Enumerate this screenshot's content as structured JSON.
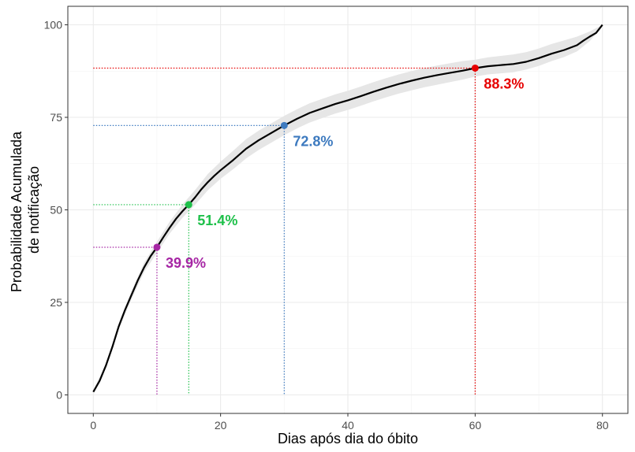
{
  "chart_data": {
    "type": "line",
    "xlabel": "Dias após dia do óbito",
    "ylabel_lines": [
      "Probabilidade Acumulada",
      "de notificação"
    ],
    "xlim": [
      -4,
      84
    ],
    "ylim": [
      -5,
      105
    ],
    "x_ticks": [
      0,
      20,
      40,
      60,
      80
    ],
    "y_ticks": [
      0,
      25,
      50,
      75,
      100
    ],
    "grid": true,
    "series": [
      {
        "color": "#000000",
        "points": [
          [
            0,
            0.8
          ],
          [
            1,
            3.8
          ],
          [
            2,
            8
          ],
          [
            3,
            13
          ],
          [
            4,
            18.5
          ],
          [
            5,
            23
          ],
          [
            6,
            27
          ],
          [
            7,
            31
          ],
          [
            8,
            34.5
          ],
          [
            9,
            37.5
          ],
          [
            10,
            39.9
          ],
          [
            11,
            42.6
          ],
          [
            12,
            45.2
          ],
          [
            13,
            47.6
          ],
          [
            14,
            49.6
          ],
          [
            15,
            51.4
          ],
          [
            16,
            53.4
          ],
          [
            17,
            55.6
          ],
          [
            18,
            57.5
          ],
          [
            19,
            59.2
          ],
          [
            20,
            60.7
          ],
          [
            22,
            63.5
          ],
          [
            24,
            66.5
          ],
          [
            26,
            68.8
          ],
          [
            28,
            70.8
          ],
          [
            30,
            72.8
          ],
          [
            32,
            74.6
          ],
          [
            34,
            76.2
          ],
          [
            36,
            77.4
          ],
          [
            38,
            78.6
          ],
          [
            40,
            79.6
          ],
          [
            42,
            80.7
          ],
          [
            44,
            81.9
          ],
          [
            46,
            83.0
          ],
          [
            48,
            84.0
          ],
          [
            50,
            84.9
          ],
          [
            52,
            85.7
          ],
          [
            54,
            86.4
          ],
          [
            56,
            87.0
          ],
          [
            58,
            87.6
          ],
          [
            60,
            88.3
          ],
          [
            62,
            88.8
          ],
          [
            64,
            89.1
          ],
          [
            66,
            89.4
          ],
          [
            68,
            90.0
          ],
          [
            70,
            91.0
          ],
          [
            72,
            92.2
          ],
          [
            74,
            93.2
          ],
          [
            76,
            94.5
          ],
          [
            77,
            95.7
          ],
          [
            78,
            96.8
          ],
          [
            79,
            97.8
          ],
          [
            80,
            100
          ]
        ]
      }
    ],
    "confidence_band": {
      "color": "#e6e6e6",
      "points": [
        [
          0,
          0.5,
          1.1
        ],
        [
          2,
          7.4,
          8.6
        ],
        [
          4,
          17.6,
          19.4
        ],
        [
          6,
          25.9,
          28.1
        ],
        [
          8,
          33.2,
          35.8
        ],
        [
          10,
          38.4,
          41.4
        ],
        [
          12,
          43.6,
          46.8
        ],
        [
          14,
          47.8,
          51.4
        ],
        [
          16,
          51.4,
          55.4
        ],
        [
          18,
          55.3,
          59.7
        ],
        [
          20,
          58.4,
          63.0
        ],
        [
          22,
          61.0,
          66.0
        ],
        [
          24,
          63.9,
          69.1
        ],
        [
          26,
          66.2,
          71.4
        ],
        [
          28,
          68.2,
          73.4
        ],
        [
          30,
          70.2,
          75.4
        ],
        [
          32,
          72.0,
          77.2
        ],
        [
          34,
          73.6,
          78.8
        ],
        [
          36,
          74.8,
          80.0
        ],
        [
          38,
          76.0,
          81.2
        ],
        [
          40,
          77.0,
          82.2
        ],
        [
          42,
          78.1,
          83.3
        ],
        [
          44,
          79.3,
          84.5
        ],
        [
          46,
          80.4,
          85.6
        ],
        [
          48,
          81.4,
          86.6
        ],
        [
          50,
          82.3,
          87.5
        ],
        [
          52,
          83.1,
          88.3
        ],
        [
          54,
          83.8,
          89.0
        ],
        [
          56,
          84.5,
          89.6
        ],
        [
          58,
          85.2,
          90.2
        ],
        [
          60,
          86.0,
          90.6
        ],
        [
          62,
          86.6,
          91.2
        ],
        [
          64,
          86.9,
          91.6
        ],
        [
          66,
          87.2,
          92.0
        ],
        [
          68,
          87.9,
          92.6
        ],
        [
          70,
          88.9,
          93.6
        ],
        [
          72,
          90.2,
          94.8
        ],
        [
          74,
          91.3,
          95.8
        ],
        [
          76,
          92.8,
          96.8
        ],
        [
          78,
          95.6,
          98.2
        ],
        [
          80,
          99.6,
          100
        ]
      ]
    },
    "markers": [
      {
        "x": 10,
        "y": 39.9,
        "label": "39.9%",
        "color": "#a626a4"
      },
      {
        "x": 15,
        "y": 51.4,
        "label": "51.4%",
        "color": "#1ec04a"
      },
      {
        "x": 30,
        "y": 72.8,
        "label": "72.8%",
        "color": "#3d7abf"
      },
      {
        "x": 60,
        "y": 88.3,
        "label": "88.3%",
        "color": "#e60000"
      }
    ]
  }
}
